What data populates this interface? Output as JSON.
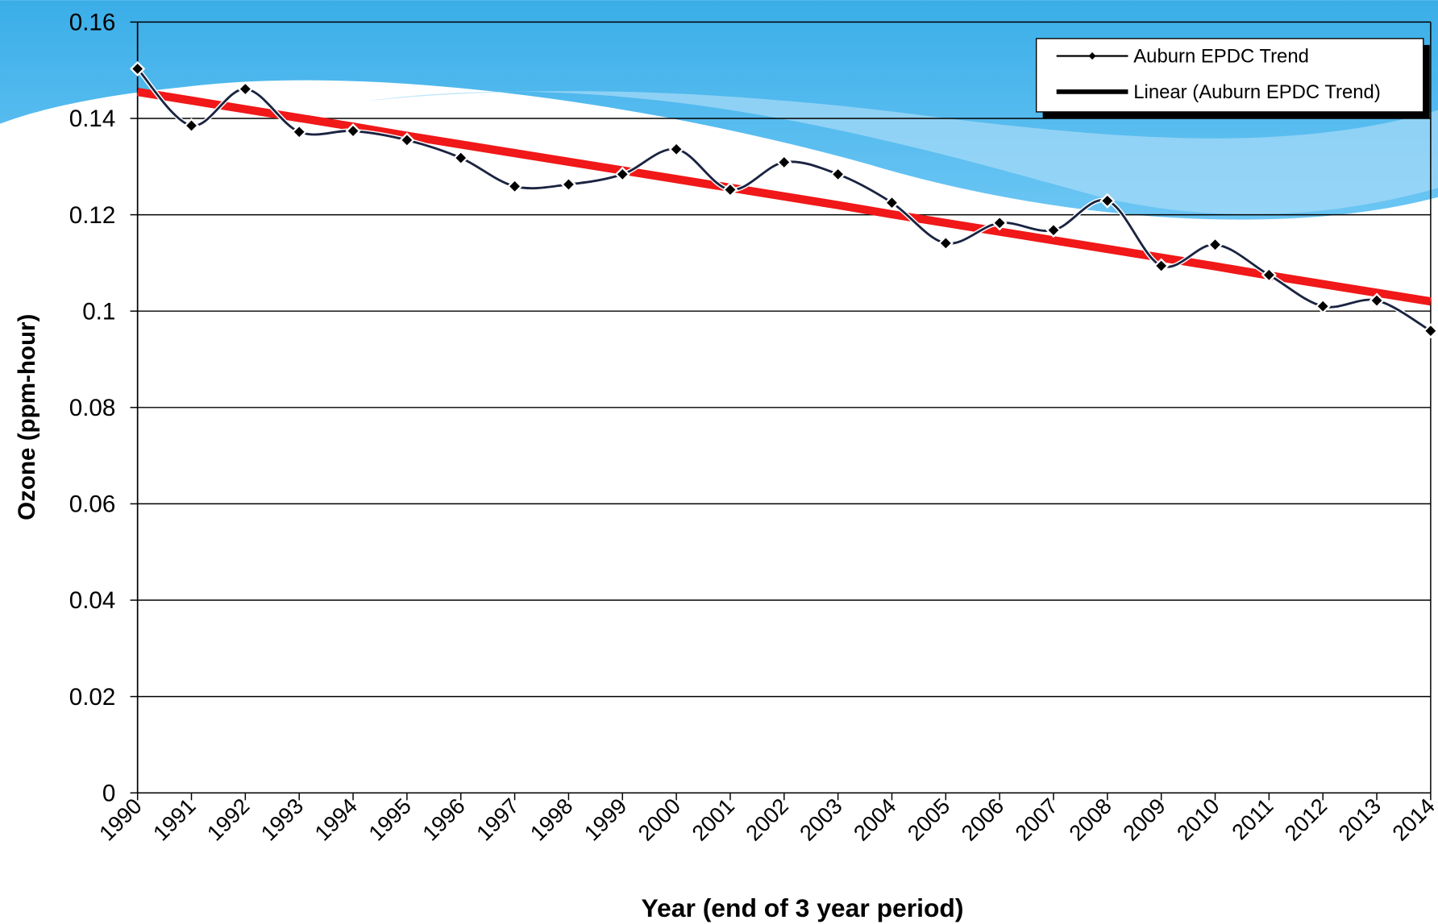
{
  "chart_data": {
    "type": "line",
    "x_label": "Year (end of 3 year period)",
    "y_label": "Ozone (ppm-hour)",
    "categories": [
      "1990",
      "1991",
      "1992",
      "1993",
      "1994",
      "1995",
      "1996",
      "1997",
      "1998",
      "1999",
      "2000",
      "2001",
      "2002",
      "2003",
      "2004",
      "2005",
      "2006",
      "2007",
      "2008",
      "2009",
      "2010",
      "2011",
      "2012",
      "2013",
      "2014"
    ],
    "series": [
      {
        "name": "Auburn EPDC Trend",
        "color": "#1a2340",
        "smooth": true,
        "markers": true,
        "values": [
          0.1503,
          0.1385,
          0.1461,
          0.1372,
          0.1374,
          0.1355,
          0.1318,
          0.1259,
          0.1263,
          0.1284,
          0.1336,
          0.1252,
          0.1309,
          0.1284,
          0.1225,
          0.1141,
          0.1183,
          0.1168,
          0.1229,
          0.1094,
          0.1138,
          0.1075,
          0.101,
          0.1022,
          0.0959
        ]
      },
      {
        "name": "Linear (Auburn EPDC Trend)",
        "color": "#f01818",
        "smooth": false,
        "markers": false,
        "values": [
          0.1455,
          0.1437,
          0.1419,
          0.1401,
          0.1383,
          0.1364,
          0.1346,
          0.1328,
          0.131,
          0.1292,
          0.1274,
          0.1256,
          0.1238,
          0.122,
          0.1201,
          0.1183,
          0.1165,
          0.1147,
          0.1129,
          0.1111,
          0.1093,
          0.1074,
          0.1056,
          0.1038,
          0.102
        ]
      }
    ],
    "ylim": [
      0,
      0.16
    ],
    "yticks": [
      0,
      0.02,
      0.04,
      0.06,
      0.08,
      0.1,
      0.12,
      0.14,
      0.16
    ],
    "grid": true,
    "legend": "top-right"
  }
}
